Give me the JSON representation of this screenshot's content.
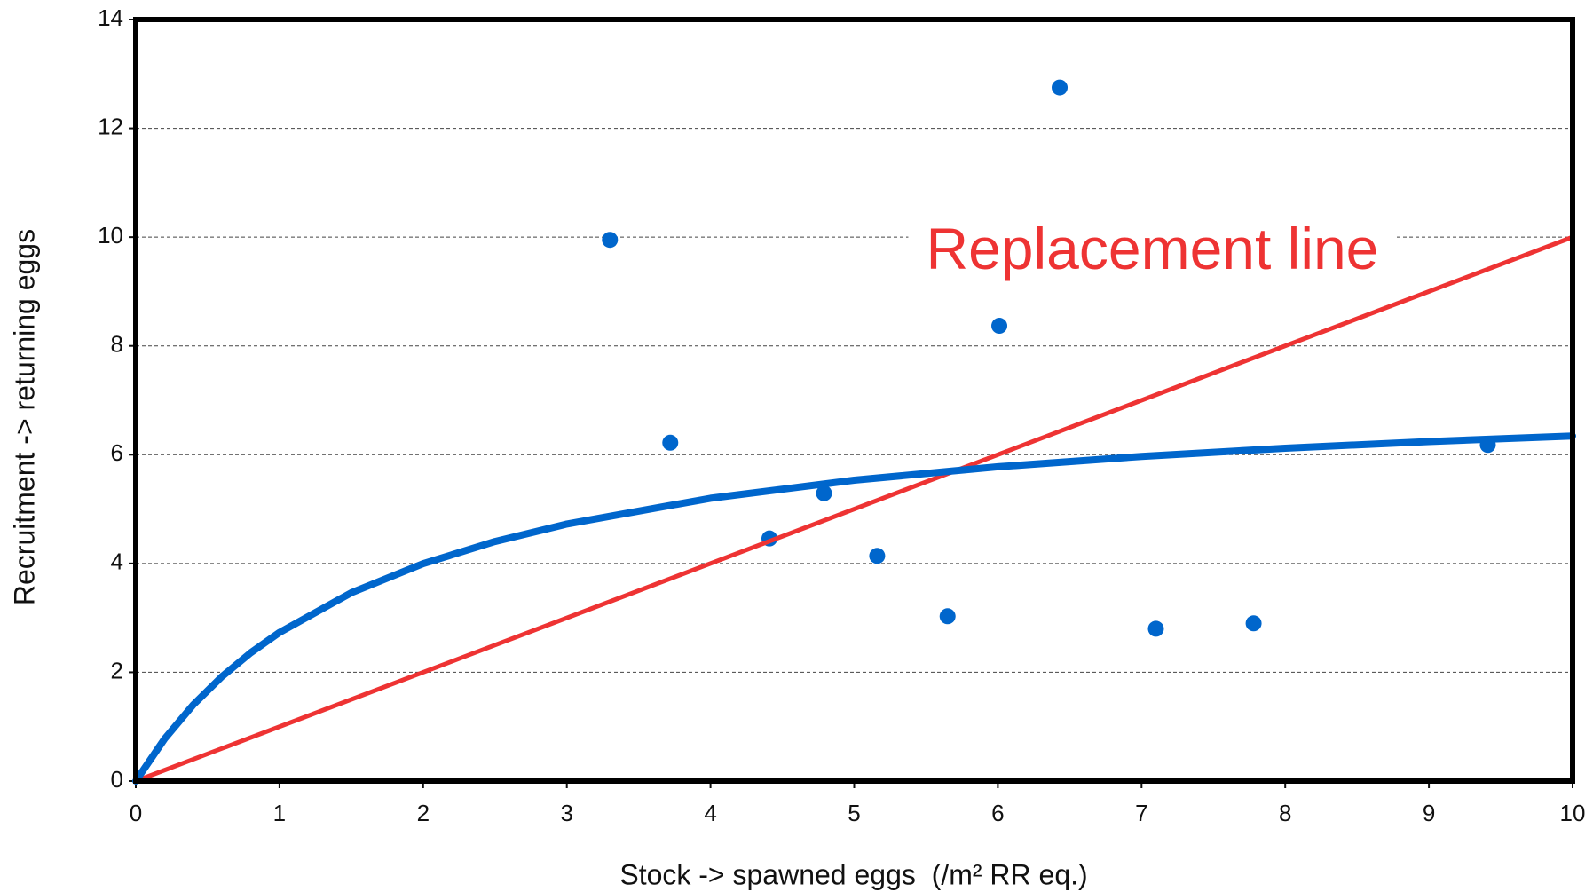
{
  "chart_data": {
    "type": "scatter",
    "x_label": "Stock -> spawned eggs  (/m² RR eq.)",
    "y_label": "Recruitment -> returning eggs",
    "xlim": [
      0,
      10
    ],
    "ylim": [
      0,
      14
    ],
    "xticks": [
      0,
      1,
      2,
      3,
      4,
      5,
      6,
      7,
      8,
      9,
      10
    ],
    "yticks": [
      0,
      2,
      4,
      6,
      8,
      10,
      12,
      14
    ],
    "grid": "y",
    "annotations": [
      {
        "text": "Replacement line",
        "color": "#ee3333"
      }
    ],
    "series": [
      {
        "mode": "markers",
        "color": "#0066cc",
        "x": [
          3.3,
          3.72,
          4.41,
          4.79,
          5.16,
          5.65,
          6.01,
          6.43,
          7.1,
          7.78,
          9.41
        ],
        "values": [
          9.95,
          6.22,
          4.46,
          5.29,
          4.14,
          3.03,
          8.37,
          12.75,
          2.8,
          2.9,
          6.18
        ]
      },
      {
        "mode": "line",
        "color": "#ee3333",
        "x": [
          0,
          10
        ],
        "values": [
          0,
          10
        ]
      },
      {
        "mode": "line",
        "color": "#0066cc",
        "x": [
          0,
          0.2,
          0.4,
          0.6,
          0.8,
          1,
          1.5,
          2,
          2.5,
          3,
          4,
          5,
          6,
          7,
          8,
          9,
          10
        ],
        "values": [
          0,
          0.774,
          1.402,
          1.922,
          2.359,
          2.732,
          3.462,
          3.996,
          4.404,
          4.725,
          5.199,
          5.531,
          5.778,
          5.968,
          6.119,
          6.242,
          6.344
        ]
      }
    ]
  }
}
